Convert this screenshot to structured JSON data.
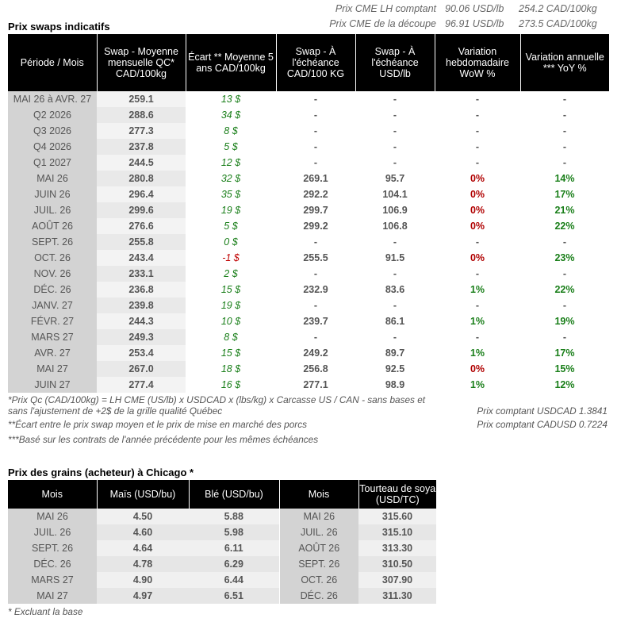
{
  "cme": [
    {
      "label": "Prix CME LH comptant",
      "usd": "90.06 USD/lb",
      "cad": "254.2 CAD/100kg"
    },
    {
      "label": "Prix CME de la découpe",
      "usd": "96.91 USD/lb",
      "cad": "273.5 CAD/100kg"
    }
  ],
  "swap": {
    "title": "Prix swaps indicatifs",
    "headers": [
      "Période / Mois",
      "Swap - Moyenne mensuelle QC* CAD/100kg",
      "Écart ** Moyenne 5 ans CAD/100kg",
      "Swap - À l'échéance CAD/100 KG",
      "Swap - À l'échéance USD/lb",
      "Variation hebdomadaire WoW %",
      "Variation annuelle *** YoY %"
    ],
    "rows": [
      {
        "p": "MAI 26  à  AVR. 27",
        "qc": "259.1",
        "e": "13 $",
        "cad": "-",
        "usd": "-",
        "wow": "-",
        "yoy": "-"
      },
      {
        "p": "Q2 2026",
        "qc": "288.6",
        "e": "34 $",
        "cad": "-",
        "usd": "-",
        "wow": "-",
        "yoy": "-"
      },
      {
        "p": "Q3 2026",
        "qc": "277.3",
        "e": "8 $",
        "cad": "-",
        "usd": "-",
        "wow": "-",
        "yoy": "-"
      },
      {
        "p": "Q4 2026",
        "qc": "237.8",
        "e": "5 $",
        "cad": "-",
        "usd": "-",
        "wow": "-",
        "yoy": "-"
      },
      {
        "p": "Q1 2027",
        "qc": "244.5",
        "e": "12 $",
        "cad": "-",
        "usd": "-",
        "wow": "-",
        "yoy": "-"
      },
      {
        "p": "MAI 26",
        "qc": "280.8",
        "e": "32 $",
        "cad": "269.1",
        "usd": "95.7",
        "wow": "0%",
        "yoy": "14%"
      },
      {
        "p": "JUIN 26",
        "qc": "296.4",
        "e": "35 $",
        "cad": "292.2",
        "usd": "104.1",
        "wow": "0%",
        "yoy": "17%"
      },
      {
        "p": "JUIL. 26",
        "qc": "299.6",
        "e": "19 $",
        "cad": "299.7",
        "usd": "106.9",
        "wow": "0%",
        "yoy": "21%"
      },
      {
        "p": "AOÛT 26",
        "qc": "276.6",
        "e": "5 $",
        "cad": "299.2",
        "usd": "106.8",
        "wow": "0%",
        "yoy": "22%"
      },
      {
        "p": "SEPT. 26",
        "qc": "255.8",
        "e": "0 $",
        "cad": "-",
        "usd": "-",
        "wow": "-",
        "yoy": "-"
      },
      {
        "p": "OCT. 26",
        "qc": "243.4",
        "e": "-1 $",
        "cad": "255.5",
        "usd": "91.5",
        "wow": "0%",
        "yoy": "23%"
      },
      {
        "p": "NOV. 26",
        "qc": "233.1",
        "e": "2 $",
        "cad": "-",
        "usd": "-",
        "wow": "-",
        "yoy": "-"
      },
      {
        "p": "DÉC. 26",
        "qc": "236.8",
        "e": "15 $",
        "cad": "232.9",
        "usd": "83.6",
        "wow": "1%",
        "yoy": "22%"
      },
      {
        "p": "JANV. 27",
        "qc": "239.8",
        "e": "19 $",
        "cad": "-",
        "usd": "-",
        "wow": "-",
        "yoy": "-"
      },
      {
        "p": "FÉVR. 27",
        "qc": "244.3",
        "e": "10 $",
        "cad": "239.7",
        "usd": "86.1",
        "wow": "1%",
        "yoy": "19%"
      },
      {
        "p": "MARS 27",
        "qc": "249.3",
        "e": "8 $",
        "cad": "-",
        "usd": "-",
        "wow": "-",
        "yoy": "-"
      },
      {
        "p": "AVR. 27",
        "qc": "253.4",
        "e": "15 $",
        "cad": "249.2",
        "usd": "89.7",
        "wow": "1%",
        "yoy": "17%"
      },
      {
        "p": "MAI 27",
        "qc": "267.0",
        "e": "18 $",
        "cad": "256.8",
        "usd": "92.5",
        "wow": "0%",
        "yoy": "15%"
      },
      {
        "p": "JUIN 27",
        "qc": "277.4",
        "e": "16 $",
        "cad": "277.1",
        "usd": "98.9",
        "wow": "1%",
        "yoy": "12%"
      }
    ]
  },
  "notes": {
    "n1": "*Prix Qc (CAD/100kg) = LH CME (US/lb) x USDCAD x (lbs/kg) x Carcasse US / CAN - sans bases et",
    "n1b": "sans l'ajustement de +2$ de la grille qualité Québec",
    "n2": "**Écart entre le prix swap moyen et le prix de mise en marché des porcs",
    "n3": "***Basé sur les contrats de l'année précédente pour les mêmes échéances",
    "fx1": "Prix comptant USDCAD 1.3841",
    "fx2": "Prix comptant CADUSD 0.7224"
  },
  "grain": {
    "title": "Prix des grains (acheteur) à Chicago *",
    "headers": [
      "Mois",
      "Maïs (USD/bu)",
      "Blé (USD/bu)",
      "Mois",
      "Tourteau de soya (USD/TC)"
    ],
    "rows": [
      {
        "m1": "MAI 26",
        "mais": "4.50",
        "ble": "5.88",
        "m2": "MAI 26",
        "soya": "315.60"
      },
      {
        "m1": "JUIL. 26",
        "mais": "4.60",
        "ble": "5.98",
        "m2": "JUIL. 26",
        "soya": "315.10"
      },
      {
        "m1": "SEPT. 26",
        "mais": "4.64",
        "ble": "6.11",
        "m2": "AOÛT 26",
        "soya": "313.30"
      },
      {
        "m1": "DÉC. 26",
        "mais": "4.78",
        "ble": "6.29",
        "m2": "SEPT. 26",
        "soya": "310.50"
      },
      {
        "m1": "MARS 27",
        "mais": "4.90",
        "ble": "6.44",
        "m2": "OCT. 26",
        "soya": "307.90"
      },
      {
        "m1": "MAI 27",
        "mais": "4.97",
        "ble": "6.51",
        "m2": "DÉC. 26",
        "soya": "311.30"
      }
    ],
    "note": "* Excluant la base"
  },
  "colors": {
    "positive": "#1a7f1a",
    "negative": "#c00000",
    "header_bg": "#000000",
    "period_bg": "#d3d3d3"
  }
}
